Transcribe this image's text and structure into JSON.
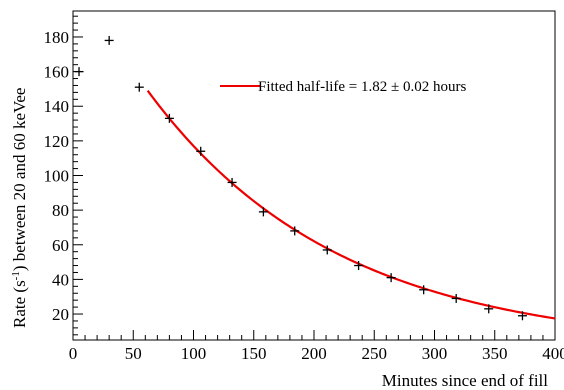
{
  "chart_data": {
    "type": "scatter",
    "xlabel": "Minutes since end of fill",
    "ylabel_main": "Rate (s",
    "ylabel_sup": "-1",
    "ylabel_rest": ") between 20 and 60 keVee",
    "xlim": [
      0,
      400
    ],
    "ylim": [
      5,
      195
    ],
    "x_ticks": [
      0,
      50,
      100,
      150,
      200,
      250,
      300,
      350,
      400
    ],
    "y_ticks": [
      20,
      40,
      60,
      80,
      100,
      120,
      140,
      160,
      180
    ],
    "x_tick_labels": [
      "0",
      "50",
      "100",
      "150",
      "200",
      "250",
      "300",
      "350",
      "400"
    ],
    "y_tick_labels": [
      "20",
      "40",
      "60",
      "80",
      "100",
      "120",
      "140",
      "160",
      "180"
    ],
    "grid": false,
    "legend_position": "top-right",
    "series": [
      {
        "kind": "markers",
        "color": "#000000",
        "points": [
          {
            "x": 5,
            "y": 160
          },
          {
            "x": 30,
            "y": 178
          },
          {
            "x": 55,
            "y": 151
          },
          {
            "x": 80,
            "y": 133
          },
          {
            "x": 106,
            "y": 114
          },
          {
            "x": 132,
            "y": 96
          },
          {
            "x": 158,
            "y": 79
          },
          {
            "x": 184,
            "y": 68
          },
          {
            "x": 211,
            "y": 57
          },
          {
            "x": 237,
            "y": 48
          },
          {
            "x": 264,
            "y": 41
          },
          {
            "x": 291,
            "y": 34
          },
          {
            "x": 318,
            "y": 29
          },
          {
            "x": 345,
            "y": 23
          },
          {
            "x": 373,
            "y": 19
          }
        ]
      },
      {
        "kind": "fit",
        "name": "Fitted half-life = 1.82 ± 0.02 hours",
        "color": "#ee0000",
        "model": "exponential",
        "A": 149,
        "x0": 62,
        "half_life_minutes": 109.2,
        "x_range": [
          62,
          400
        ]
      }
    ]
  }
}
